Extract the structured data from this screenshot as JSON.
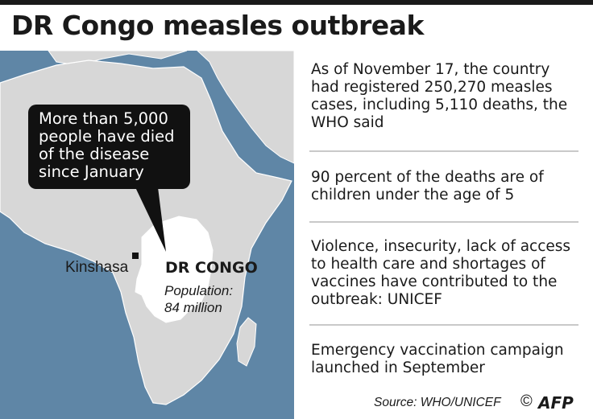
{
  "header": {
    "title": "DR Congo measles outbreak"
  },
  "map": {
    "callout": [
      "More than 5,000",
      "people have died",
      "of the disease",
      "since January"
    ],
    "city_label": "Kinshasa",
    "country_label": "DR CONGO",
    "population_label": "Population:",
    "population_value": "84 million",
    "colors": {
      "sea": "#5f86a6",
      "land": "#d7d7d7",
      "highlight": "#ffffff",
      "callout": "#111111"
    }
  },
  "facts": [
    "As of November 17, the country had registered 250,270 measles cases, including 5,110 deaths, the WHO said",
    "90 percent of the deaths are of children under the age of 5",
    "Violence, insecurity, lack of access to health care and shortages of vaccines have contributed to the outbreak: UNICEF",
    "Emergency vaccination campaign launched in September"
  ],
  "footer": {
    "source": "Source: WHO/UNICEF",
    "copyright": "©",
    "logo_text": "AFP"
  }
}
